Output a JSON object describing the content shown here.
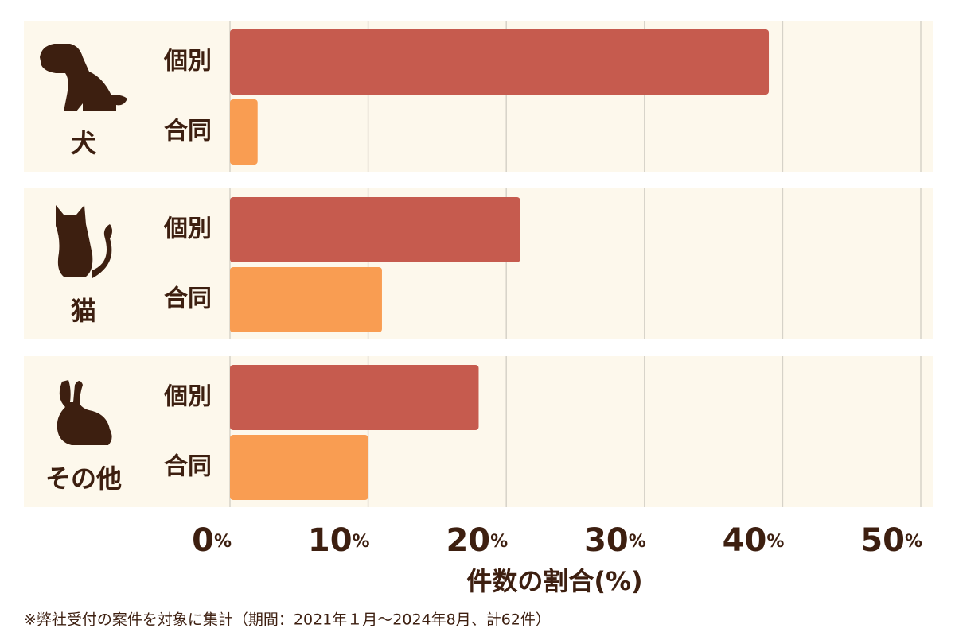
{
  "chart_data": {
    "type": "grouped-hbar",
    "categories": [
      "犬",
      "猫",
      "その他"
    ],
    "series": [
      {
        "name": "個別",
        "color": "#c65b4e",
        "values": [
          39,
          21,
          18
        ]
      },
      {
        "name": "合同",
        "color": "#f99d52",
        "values": [
          2,
          11,
          10
        ]
      }
    ],
    "xlim": [
      0,
      50
    ],
    "xticks": [
      {
        "value": 0,
        "label": "0%"
      },
      {
        "value": 10,
        "label": "10%"
      },
      {
        "value": 20,
        "label": "20%"
      },
      {
        "value": 30,
        "label": "30%"
      },
      {
        "value": 40,
        "label": "40%"
      },
      {
        "value": 50,
        "label": "50%"
      }
    ],
    "xlabel": "件数の割合(%)",
    "footnote": "※弊社受付の案件を対象に集計（期間：2021年１月～2024年8月、計62件）",
    "grid": true
  }
}
